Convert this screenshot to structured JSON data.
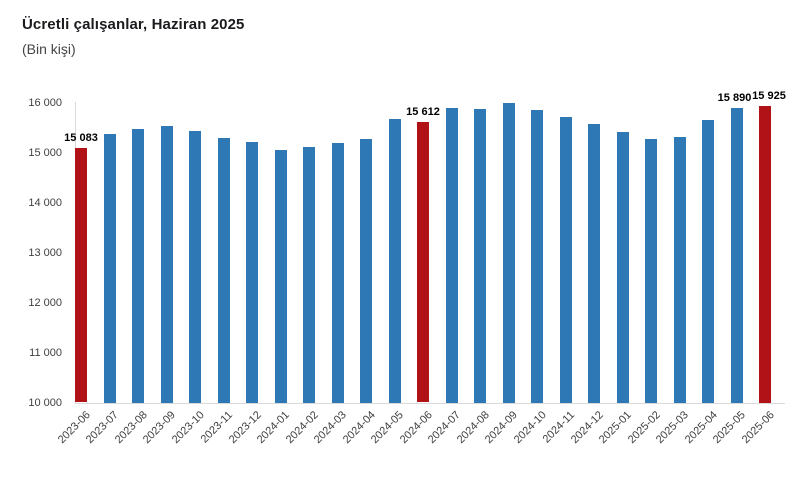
{
  "header": {
    "title": "Ücretli çalışanlar, Haziran 2025",
    "subtitle": "(Bin kişi)"
  },
  "chart_data": {
    "type": "bar",
    "title": "Ücretli çalışanlar, Haziran 2025",
    "subtitle": "(Bin kişi)",
    "xlabel": "",
    "ylabel": "",
    "grid": false,
    "legend": "none",
    "ylim": [
      10000,
      16000
    ],
    "ytick_values": [
      16000,
      15000,
      14000,
      13000,
      12000,
      11000,
      10000
    ],
    "ytick_labels": [
      "16 000",
      "15 000",
      "14 000",
      "13 000",
      "12 000",
      "11 000",
      "10 000"
    ],
    "categories": [
      "2023-06",
      "2023-07",
      "2023-08",
      "2023-09",
      "2023-10",
      "2023-11",
      "2023-12",
      "2024-01",
      "2024-02",
      "2024-03",
      "2024-04",
      "2024-05",
      "2024-06",
      "2024-07",
      "2024-08",
      "2024-09",
      "2024-10",
      "2024-11",
      "2024-12",
      "2025-01",
      "2025-02",
      "2025-03",
      "2025-04",
      "2025-05",
      "2025-06"
    ],
    "values": [
      15083,
      15370,
      15470,
      15540,
      15440,
      15290,
      15220,
      15060,
      15110,
      15200,
      15280,
      15670,
      15612,
      15900,
      15880,
      15990,
      15850,
      15720,
      15570,
      15410,
      15280,
      15320,
      15650,
      15890,
      15925
    ],
    "highlighted_categories": [
      "2023-06",
      "2024-06",
      "2025-06"
    ],
    "annotations": [
      {
        "category": "2023-06",
        "text": "15 083",
        "dx": 0
      },
      {
        "category": "2024-06",
        "text": "15 612",
        "dx": 0
      },
      {
        "category": "2025-05",
        "text": "15 890",
        "dx": -2
      },
      {
        "category": "2025-06",
        "text": "15 925",
        "dx": 4
      }
    ],
    "colors": {
      "bar": "#2e78b5",
      "highlight": "#b01218",
      "axis_line": "#d9d9d9",
      "tick_text": "#404040",
      "title_text": "#1b1b1f",
      "data_label_text": "#000000"
    }
  }
}
